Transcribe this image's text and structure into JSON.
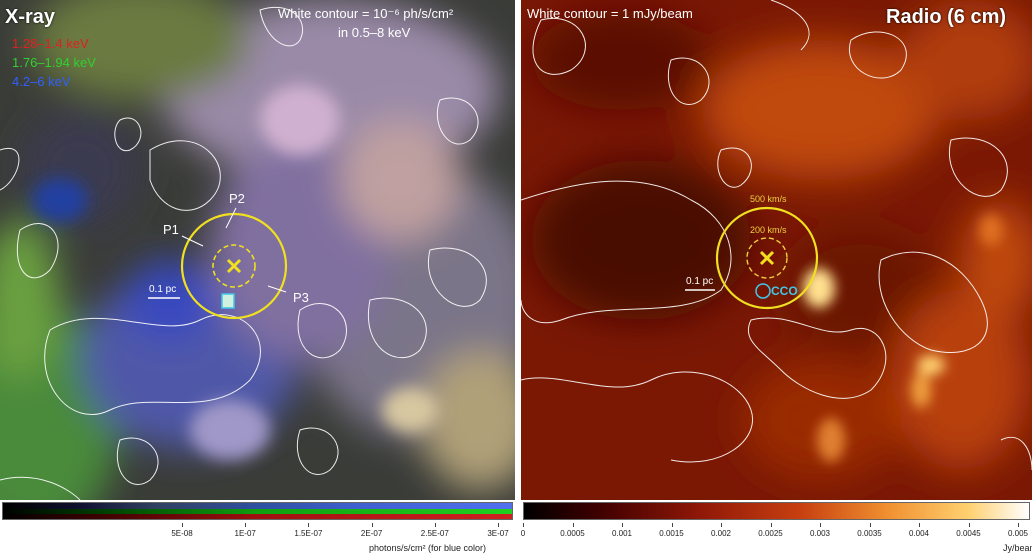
{
  "left_panel": {
    "title": "X-ray",
    "bands": [
      {
        "label": "1.28–1.4 keV",
        "color": "#e02020"
      },
      {
        "label": "1.76–1.94 keV",
        "color": "#30d030"
      },
      {
        "label": "4.2–6 keV",
        "color": "#3060ff"
      }
    ],
    "contour_note_line1": "White contour = 10⁻⁶ ph/s/cm²",
    "contour_note_line2": "in 0.5–8 keV",
    "markers": [
      "P1",
      "P2",
      "P3"
    ],
    "scale_bar": "0.1 pc",
    "colorbar": {
      "ticks": [
        "5E-08",
        "1E-07",
        "1.5E-07",
        "2E-07",
        "2.5E-07",
        "3E-07"
      ],
      "unit": "photons/s/cm² (for blue color)"
    }
  },
  "right_panel": {
    "title": "Radio (6 cm)",
    "contour_note": "White contour = 1 mJy/beam",
    "velocity_labels": [
      "500 km/s",
      "200 km/s"
    ],
    "cco_label": "CCO",
    "scale_bar": "0.1 pc",
    "colorbar": {
      "ticks": [
        "0",
        "0.0005",
        "0.001",
        "0.0015",
        "0.002",
        "0.0025",
        "0.003",
        "0.0035",
        "0.004",
        "0.0045",
        "0.005"
      ],
      "unit": "Jy/beam"
    }
  },
  "colors": {
    "circle": "#f0e020",
    "cco": "#40c8e8",
    "contour": "#ffffff"
  }
}
